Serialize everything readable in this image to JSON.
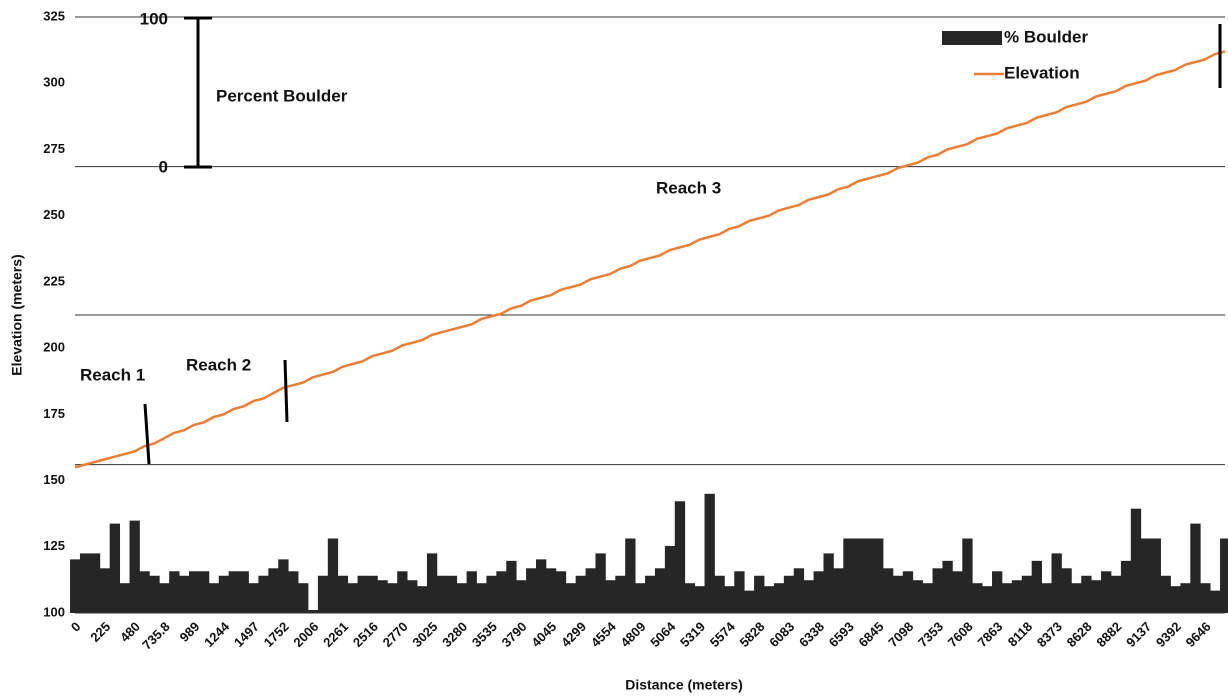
{
  "chart_data": {
    "type": "combo",
    "x_label": "Distance (meters)",
    "y_label": "Elevation  (meters)",
    "categories": [
      "0",
      null,
      null,
      "225",
      null,
      null,
      "480",
      null,
      null,
      "735.8",
      null,
      null,
      "989",
      null,
      null,
      "1244",
      null,
      null,
      "1497",
      null,
      null,
      "1752",
      null,
      null,
      "2006",
      null,
      null,
      "2261",
      null,
      null,
      "2516",
      null,
      null,
      "2770",
      null,
      null,
      "3025",
      null,
      null,
      "3280",
      null,
      null,
      "3535",
      null,
      null,
      "3790",
      null,
      null,
      "4045",
      null,
      null,
      "4299",
      null,
      null,
      "4554",
      null,
      null,
      "4809",
      null,
      null,
      "5064",
      null,
      null,
      "5319",
      null,
      null,
      "5574",
      null,
      null,
      "5828",
      null,
      null,
      "6083",
      null,
      null,
      "6338",
      null,
      null,
      "6593",
      null,
      null,
      "6845",
      null,
      null,
      "7098",
      null,
      null,
      "7353",
      null,
      null,
      "7608",
      null,
      null,
      "7863",
      null,
      null,
      "8118",
      null,
      null,
      "8373",
      null,
      null,
      "8628",
      null,
      null,
      "8882",
      null,
      null,
      "9137",
      null,
      null,
      "9392",
      null,
      null,
      "9646",
      null,
      null
    ],
    "series": [
      {
        "name": "% Boulder",
        "type": "bar",
        "axis": "y2",
        "color": "#262626",
        "values": [
          36,
          40,
          40,
          30,
          60,
          20,
          62,
          28,
          25,
          20,
          28,
          25,
          28,
          28,
          20,
          25,
          28,
          28,
          20,
          25,
          30,
          36,
          28,
          20,
          2,
          25,
          50,
          25,
          20,
          25,
          25,
          22,
          20,
          28,
          22,
          18,
          40,
          25,
          25,
          20,
          28,
          20,
          25,
          28,
          35,
          22,
          30,
          36,
          30,
          28,
          20,
          25,
          30,
          40,
          22,
          25,
          50,
          20,
          25,
          30,
          45,
          75,
          20,
          18,
          80,
          25,
          18,
          28,
          15,
          25,
          18,
          20,
          25,
          30,
          22,
          28,
          40,
          30,
          50,
          50,
          50,
          50,
          30,
          25,
          28,
          22,
          20,
          30,
          35,
          28,
          50,
          20,
          18,
          28,
          20,
          22,
          25,
          35,
          20,
          40,
          30,
          20,
          25,
          22,
          28,
          25,
          35,
          70,
          50,
          50,
          25,
          18,
          20,
          60,
          20,
          15,
          50
        ]
      },
      {
        "name": "Elevation",
        "type": "line",
        "color": "#ed7d31",
        "values": [
          155,
          156,
          157,
          158,
          159,
          160,
          161,
          163,
          164,
          166,
          168,
          169,
          171,
          172,
          174,
          175,
          177,
          178,
          180,
          181,
          183,
          185,
          186,
          187,
          189,
          190,
          191,
          193,
          194,
          195,
          197,
          198,
          199,
          201,
          202,
          203,
          205,
          206,
          207,
          208,
          209,
          211,
          212,
          213,
          215,
          216,
          218,
          219,
          220,
          222,
          223,
          224,
          226,
          227,
          228,
          230,
          231,
          233,
          234,
          235,
          237,
          238,
          239,
          241,
          242,
          243,
          245,
          246,
          248,
          249,
          250,
          252,
          253,
          254,
          256,
          257,
          258,
          260,
          261,
          263,
          264,
          265,
          266,
          268,
          269,
          270,
          272,
          273,
          275,
          276,
          277,
          279,
          280,
          281,
          283,
          284,
          285,
          287,
          288,
          289,
          291,
          292,
          293,
          295,
          296,
          297,
          299,
          300,
          301,
          303,
          304,
          305,
          307,
          308,
          309,
          311,
          312
        ]
      }
    ],
    "ylim": [
      100,
      325
    ],
    "yticks": [
      100,
      125,
      150,
      175,
      200,
      225,
      250,
      275,
      300,
      325
    ],
    "y2lim": [
      0,
      400
    ],
    "reference_lines": [
      268.5,
      212.5,
      156
    ],
    "annotations": [
      "Reach 1",
      "Reach 2",
      "Reach 3"
    ],
    "scale_bar": {
      "label": "Percent Boulder",
      "top_label": "100",
      "bottom_label": "0"
    },
    "legend": "upper right"
  }
}
